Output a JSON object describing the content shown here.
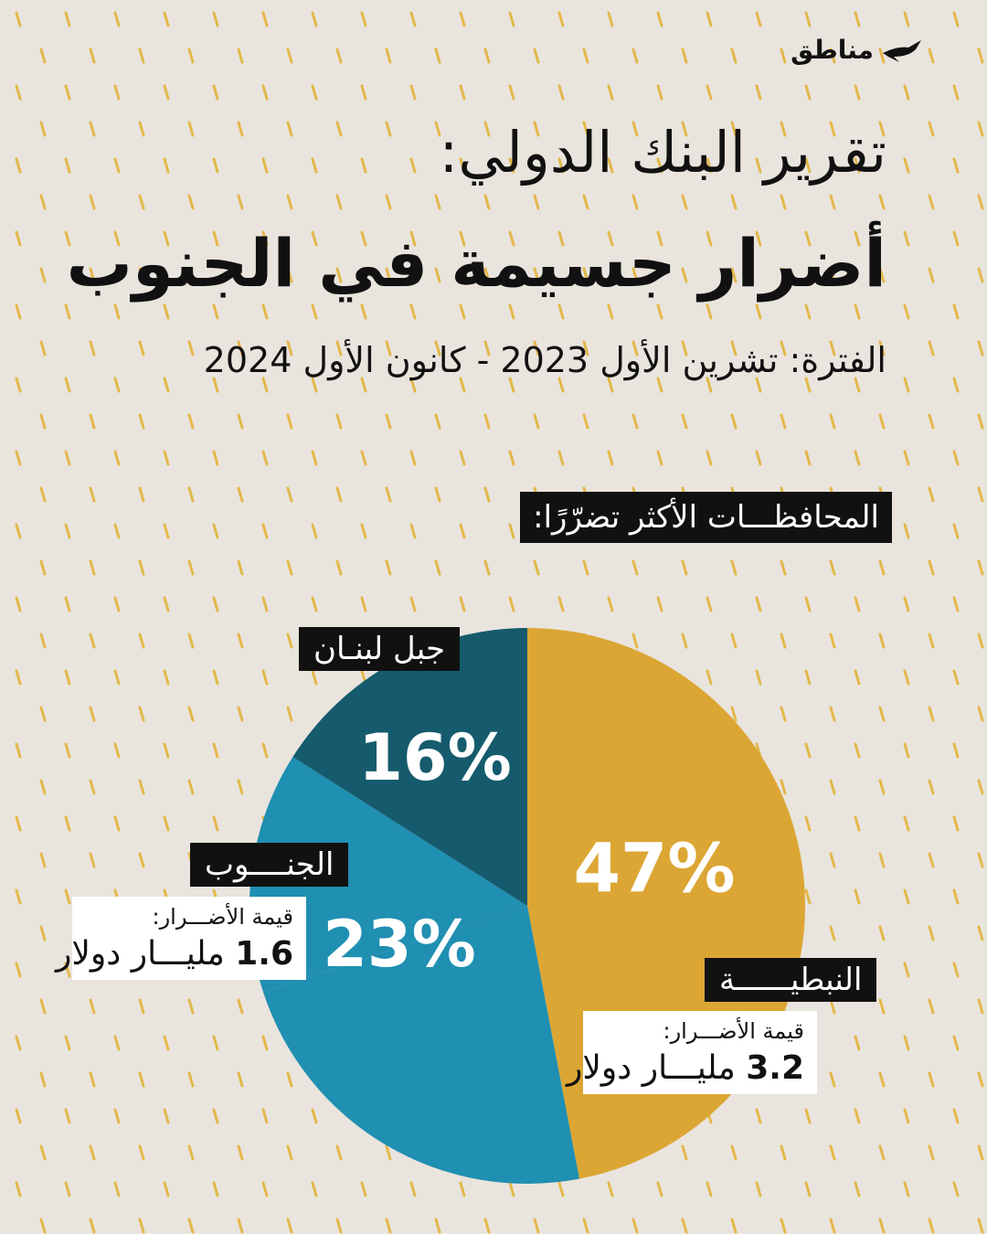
{
  "brand": {
    "name": "مناطق",
    "icon": "bird-icon"
  },
  "header": {
    "title_line1": "تقرير البنك الدولي:",
    "title_line2": "أضرار جسيمة في الجنوب",
    "period": "الفترة: تشرين الأول 2023 - كانون الأول 2024"
  },
  "section_label": "المحافظـــات الأكثر تضرّرًا:",
  "labels": {
    "nabatieh": "النبطيــــــة",
    "south": "الجنــــوب",
    "mount_lebanon": "جبل لبنـان"
  },
  "damage": {
    "label": "قيمة الأضـــرار:",
    "nabatieh_number": "3.2",
    "nabatieh_unit": " مليـــار دولار",
    "south_number": "1.6",
    "south_unit": " مليـــار دولار"
  },
  "colors": {
    "background": "#e9e4dd",
    "pattern": "#e3b84a",
    "nabatieh": "#dca634",
    "south": "#1f8fb2",
    "mount_lebanon": "#155b6d",
    "other": "#1f8fb2"
  },
  "chart_data": {
    "type": "pie",
    "title": "",
    "slices": [
      {
        "label": "النبطية",
        "value": 47,
        "display": "47%",
        "color": "#dca634"
      },
      {
        "label": "الجنوب",
        "value": 23,
        "display": "23%",
        "color": "#1f8fb2"
      },
      {
        "label": "",
        "value": 14,
        "display": "",
        "color": "#1f8fb2"
      },
      {
        "label": "جبل لبنان",
        "value": 16,
        "display": "16%",
        "color": "#155b6d"
      }
    ]
  }
}
